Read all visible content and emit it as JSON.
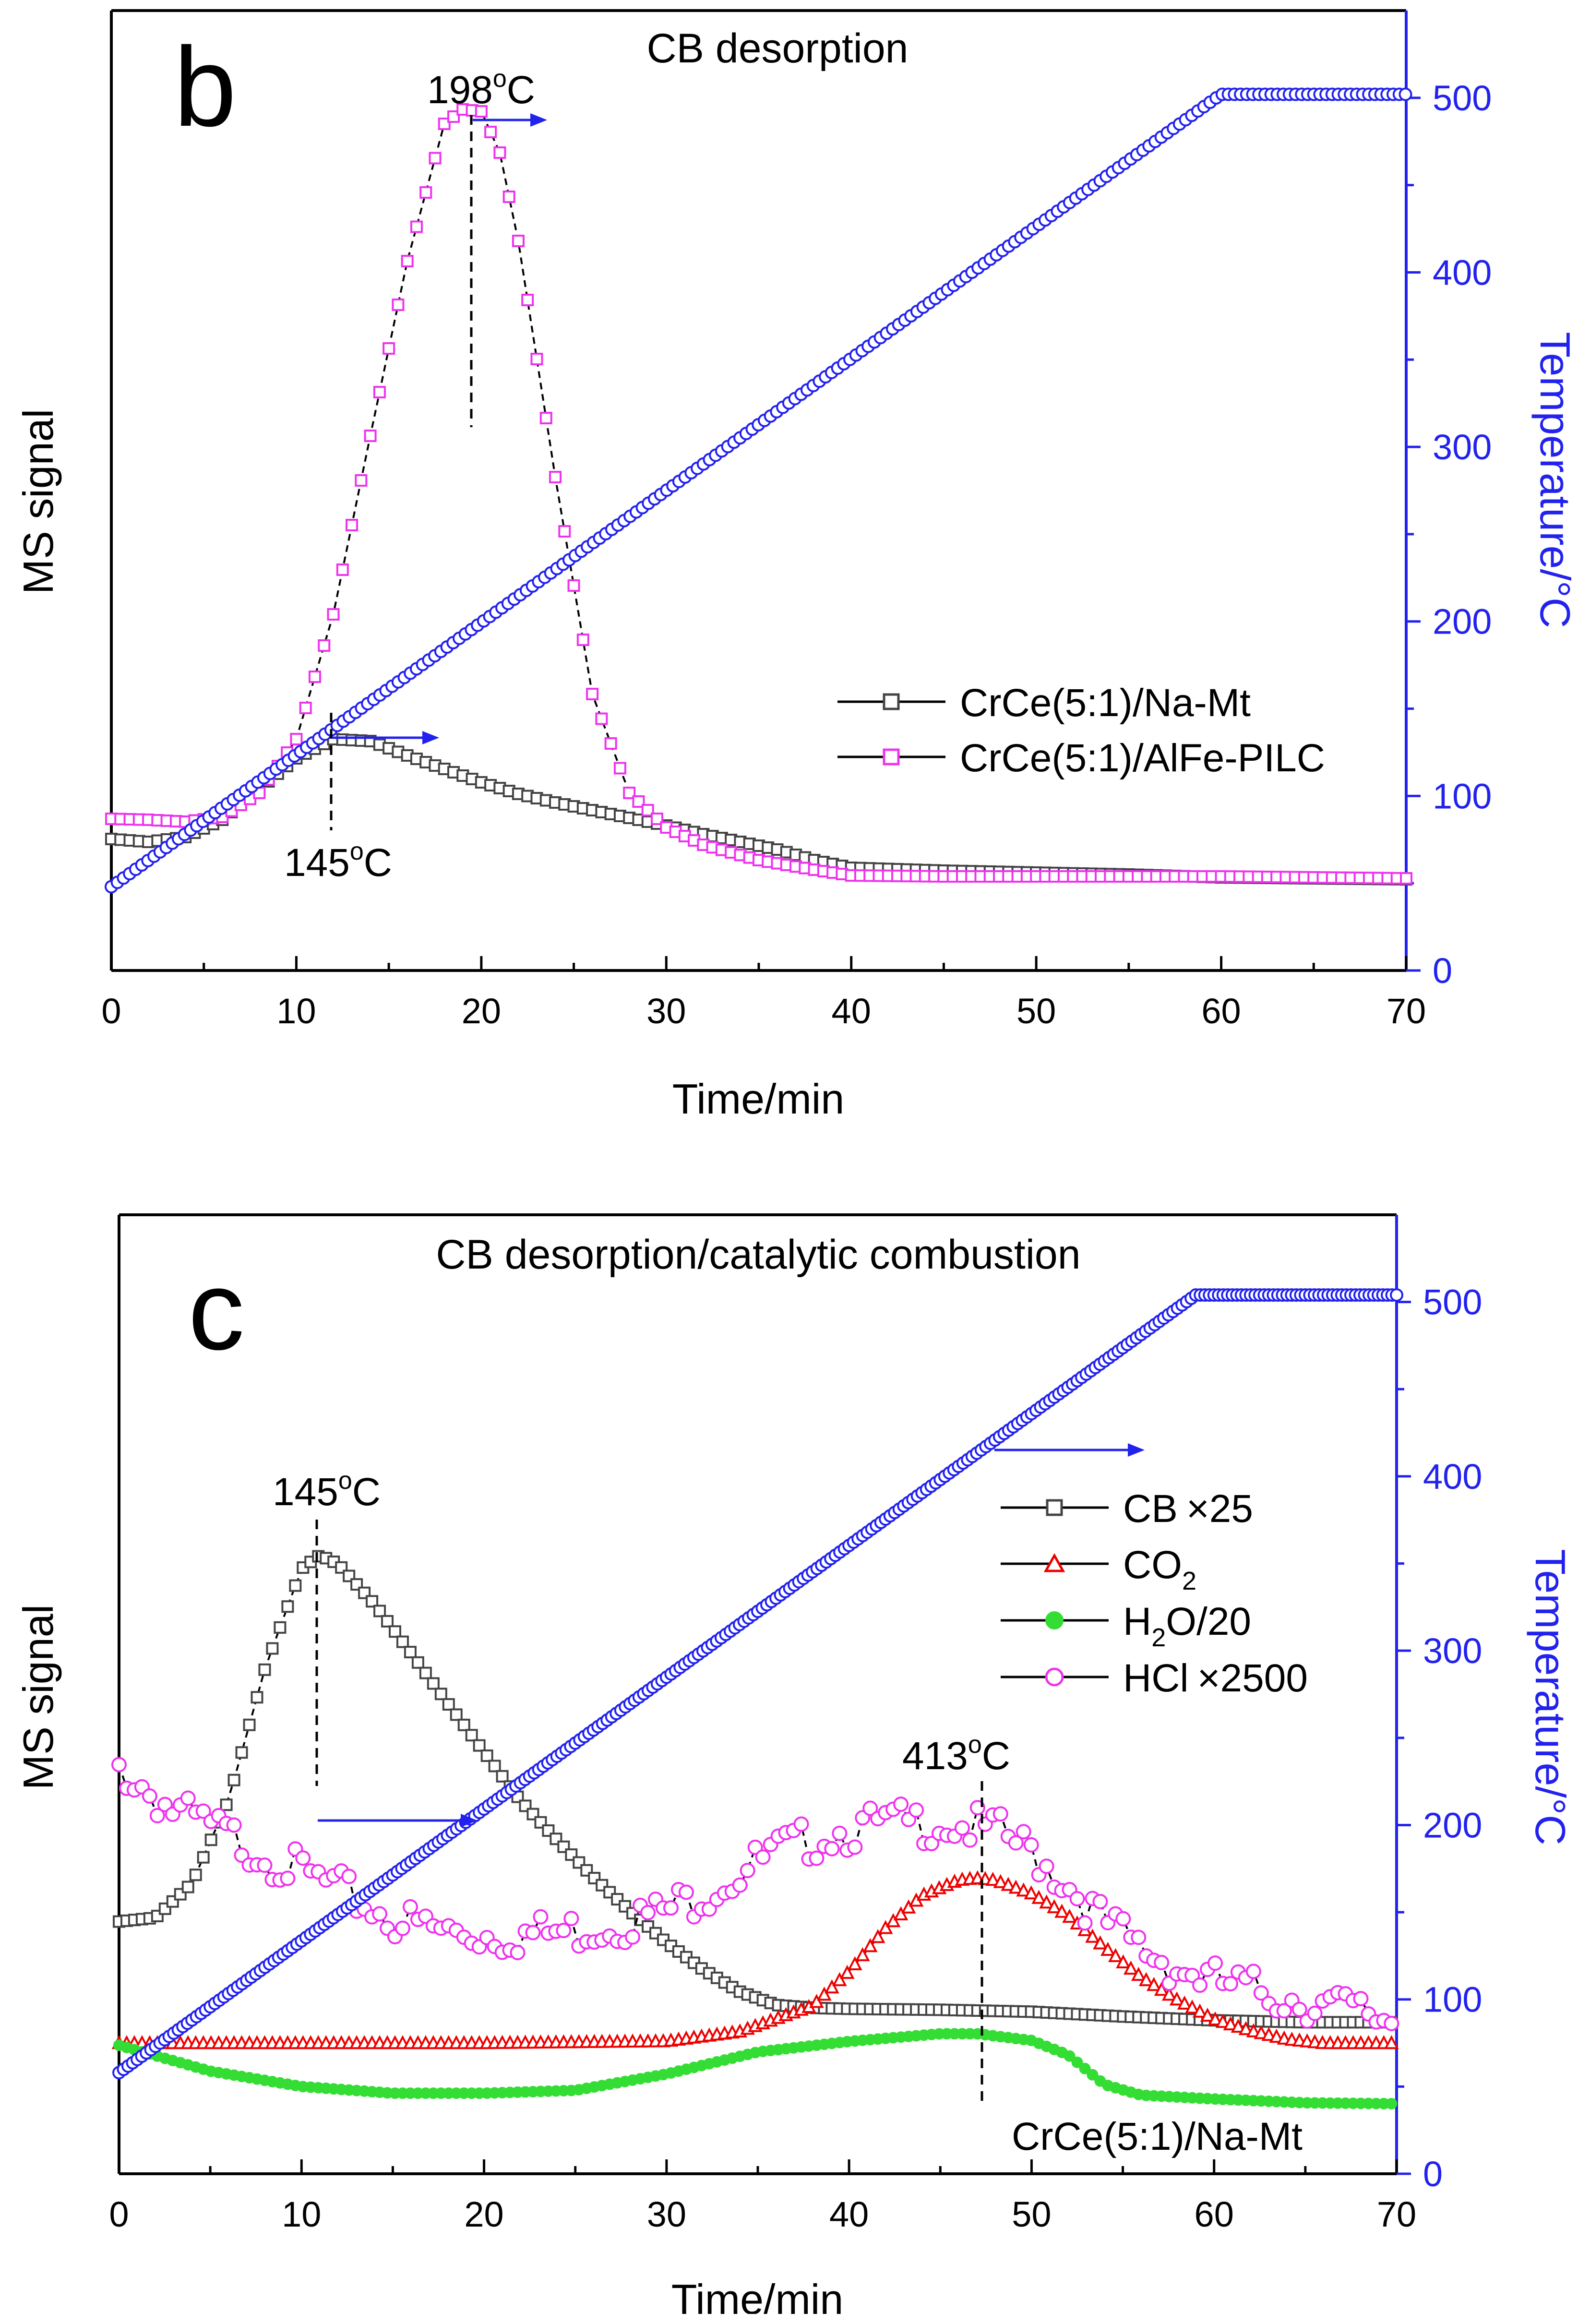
{
  "chart_data": [
    {
      "type": "line",
      "panel_label": "b",
      "title": "CB desorption",
      "xlabel": "Time/min",
      "ylabel": "MS signal",
      "y2label": "Temperature/°C",
      "xlim": [
        0,
        70
      ],
      "xticks": [
        0,
        10,
        20,
        30,
        40,
        50,
        60,
        70
      ],
      "ylim": [
        0,
        100
      ],
      "y2lim": [
        0,
        550
      ],
      "y2ticks": [
        0,
        100,
        200,
        300,
        400,
        500
      ],
      "legend_position": "middle-right",
      "series": [
        {
          "name": "CrCe(5:1)/Na-Mt",
          "marker": "square",
          "color": "#444444",
          "axis": "left",
          "x": [
            0,
            2,
            4,
            6,
            8,
            10,
            12,
            14,
            16,
            18,
            20,
            22,
            24,
            26,
            28,
            30,
            32,
            34,
            36,
            38,
            40,
            45,
            50,
            55,
            60,
            65,
            70
          ],
          "y": [
            13.7,
            13.4,
            13.9,
            15.7,
            18.9,
            22.1,
            24.1,
            23.9,
            22.4,
            21.0,
            19.6,
            18.4,
            17.5,
            16.7,
            15.9,
            15.1,
            14.2,
            13.4,
            12.6,
            11.5,
            10.7,
            10.4,
            10.2,
            10.0,
            9.7,
            9.6,
            9.5
          ]
        },
        {
          "name": "CrCe(5:1)/AlFe-PILC",
          "marker": "square",
          "color": "#ee33ee",
          "axis": "left",
          "x": [
            0,
            2,
            4,
            6,
            8,
            10,
            12,
            14,
            16,
            18,
            19,
            20,
            21,
            22,
            24,
            26,
            28,
            30,
            32,
            35,
            38,
            40,
            45,
            50,
            55,
            60,
            65,
            70
          ],
          "y": [
            15.8,
            15.7,
            15.5,
            16.0,
            18.5,
            24.1,
            37.1,
            55.7,
            73.9,
            88.2,
            89.7,
            89.5,
            85.2,
            76.0,
            51.4,
            28.8,
            18.5,
            14.9,
            13.1,
            11.5,
            10.5,
            9.9,
            9.8,
            9.8,
            9.8,
            9.8,
            9.7,
            9.6
          ]
        },
        {
          "name": "Temperature",
          "marker": "circle",
          "color": "#2222ee",
          "axis": "right",
          "x": [
            0,
            60,
            70
          ],
          "y": [
            48,
            502,
            502
          ]
        }
      ],
      "annotations": [
        "198°C",
        "145°C"
      ]
    },
    {
      "type": "line",
      "panel_label": "c",
      "title": "CB desorption/catalytic combustion",
      "xlabel": "Time/min",
      "ylabel": "MS signal",
      "y2label": "Temperature/°C",
      "xlim": [
        0,
        70
      ],
      "xticks": [
        0,
        10,
        20,
        30,
        40,
        50,
        60,
        70
      ],
      "ylim": [
        0,
        100
      ],
      "y2lim": [
        0,
        550
      ],
      "y2ticks": [
        0,
        100,
        200,
        300,
        400,
        500
      ],
      "legend_position": "upper-right",
      "footnote": "CrCe(5:1)/Na-Mt",
      "series": [
        {
          "name": "CB ×25",
          "marker": "square",
          "color": "#444444",
          "axis": "left",
          "x": [
            0,
            2,
            4,
            6,
            8,
            10,
            11,
            12,
            14,
            16,
            18,
            20,
            22,
            24,
            26,
            28,
            30,
            32,
            34,
            36,
            38,
            40,
            45,
            50,
            55,
            60,
            65,
            70
          ],
          "y": [
            26.3,
            26.7,
            30.3,
            39.0,
            52.7,
            63.1,
            64.5,
            63.6,
            59.4,
            54.3,
            49.1,
            44.0,
            38.9,
            34.8,
            30.9,
            27.4,
            24.1,
            21.3,
            19.0,
            17.6,
            17.3,
            17.2,
            17.1,
            16.9,
            16.4,
            16.0,
            15.8,
            15.8
          ]
        },
        {
          "name": "CO2",
          "marker": "triangle",
          "color": "#ee0000",
          "axis": "left",
          "x": [
            0,
            10,
            20,
            30,
            34,
            38,
            40,
            42,
            44,
            46,
            47,
            48,
            50,
            52,
            54,
            56,
            58,
            60,
            62,
            64,
            66,
            70
          ],
          "y": [
            13.6,
            13.6,
            13.6,
            13.8,
            14.8,
            17.5,
            21.1,
            25.6,
            29.0,
            30.6,
            30.8,
            30.6,
            29.2,
            26.9,
            23.6,
            20.5,
            18.1,
            16.1,
            14.9,
            14.0,
            13.6,
            13.6
          ]
        },
        {
          "name": "H2O/20",
          "marker": "filled-circle",
          "color": "#33dd33",
          "axis": "left",
          "x": [
            0,
            5,
            10,
            15,
            20,
            25,
            30,
            35,
            40,
            45,
            47,
            50,
            52,
            54,
            56,
            60,
            65,
            70
          ],
          "y": [
            13.4,
            10.7,
            9.1,
            8.4,
            8.4,
            8.7,
            10.4,
            12.7,
            13.8,
            14.6,
            14.6,
            13.9,
            12.4,
            9.3,
            8.2,
            7.8,
            7.4,
            7.3
          ]
        },
        {
          "name": "HCl ×2500",
          "marker": "circle",
          "color": "#ee33ee",
          "axis": "left",
          "x": [
            0,
            3,
            6,
            9,
            12,
            15,
            18,
            21,
            24,
            27,
            30,
            33,
            36,
            39,
            42,
            45,
            48,
            50,
            52,
            54,
            56,
            58,
            60,
            62,
            65,
            70
          ],
          "y": [
            43.4,
            38.9,
            36.3,
            33.4,
            30.7,
            27.6,
            26.3,
            25.9,
            26.2,
            27.0,
            28.5,
            31.3,
            34.6,
            36.6,
            37.5,
            37.7,
            36.8,
            34.7,
            31.3,
            27.2,
            24.6,
            22.5,
            21.1,
            20.3,
            19.1,
            17.1
          ]
        },
        {
          "name": "Temperature",
          "marker": "circle",
          "color": "#2222ee",
          "axis": "right",
          "x": [
            0,
            59,
            70
          ],
          "y": [
            58,
            504,
            504
          ]
        }
      ],
      "annotations": [
        "145°C",
        "413°C"
      ]
    }
  ],
  "panels": {
    "b": {
      "label": "b",
      "title": "CB desorption",
      "xlabel": "Time/min",
      "ylabel": "MS signal",
      "y2label": "Temperature/°C",
      "ann_peak_1": "198",
      "ann_peak_2": "145",
      "ann_unit": "C",
      "ann_degree": "o",
      "legend_1": "CrCe(5:1)/Na-Mt",
      "legend_2": "CrCe(5:1)/AlFe-PILC"
    },
    "c": {
      "label": "c",
      "title": "CB desorption/catalytic combustion",
      "xlabel": "Time/min",
      "ylabel": "MS signal",
      "y2label": "Temperature/°C",
      "ann_peak_1": "145",
      "ann_peak_2": "413",
      "ann_unit": "C",
      "ann_degree": "o",
      "footnote": "CrCe(5:1)/Na-Mt",
      "legend_1a": "CB",
      "legend_1b": "×25",
      "legend_2a": "CO",
      "legend_2sub": "2",
      "legend_3a": "H",
      "legend_3sub": "2",
      "legend_3b": "O/20",
      "legend_4a": "HCl",
      "legend_4b": "×2500"
    }
  },
  "colors": {
    "axis_right": "#2222ee",
    "axis_left": "#000000",
    "arrow": "#2222ee"
  }
}
